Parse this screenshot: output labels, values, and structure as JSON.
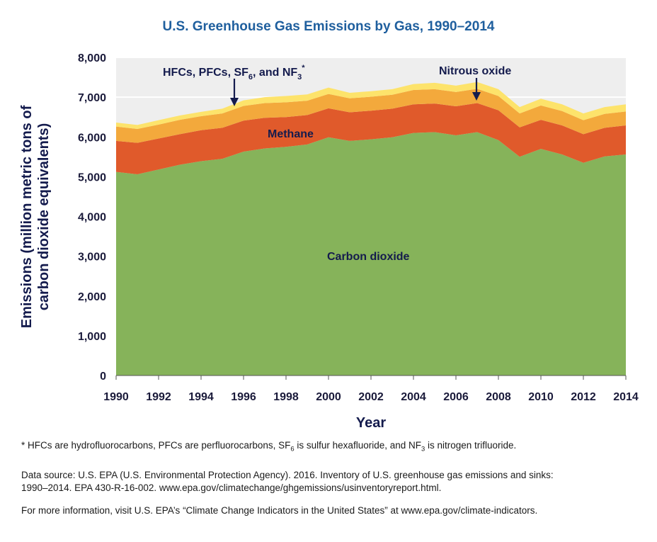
{
  "chart_data": {
    "type": "area",
    "stacked": true,
    "title": "U.S. Greenhouse Gas Emissions by Gas, 1990–2014",
    "xlabel": "Year",
    "ylabel_line1": "Emissions (million metric tons of",
    "ylabel_line2": "carbon dioxide equivalents)",
    "ylim": [
      0,
      8000
    ],
    "xlim": [
      1990,
      2014
    ],
    "x": [
      1990,
      1991,
      1992,
      1993,
      1994,
      1995,
      1996,
      1997,
      1998,
      1999,
      2000,
      2001,
      2002,
      2003,
      2004,
      2005,
      2006,
      2007,
      2008,
      2009,
      2010,
      2011,
      2012,
      2013,
      2014
    ],
    "y_ticks": [
      0,
      1000,
      2000,
      3000,
      4000,
      5000,
      6000,
      7000,
      8000
    ],
    "y_tick_labels": [
      "0",
      "1,000",
      "2,000",
      "3,000",
      "4,000",
      "5,000",
      "6,000",
      "7,000",
      "8,000"
    ],
    "x_ticks": [
      1990,
      1992,
      1994,
      1996,
      1998,
      2000,
      2002,
      2004,
      2006,
      2008,
      2010,
      2012,
      2014
    ],
    "x_tick_labels": [
      "1990",
      "1992",
      "1994",
      "1996",
      "1998",
      "2000",
      "2002",
      "2004",
      "2006",
      "2008",
      "2010",
      "2012",
      "2014"
    ],
    "grid": "horizontal",
    "series": [
      {
        "name": "Carbon dioxide",
        "color": "#86b35a",
        "values": [
          5120,
          5060,
          5180,
          5300,
          5390,
          5450,
          5630,
          5710,
          5750,
          5810,
          5990,
          5900,
          5940,
          5990,
          6100,
          6120,
          6040,
          6120,
          5920,
          5500,
          5700,
          5560,
          5350,
          5510,
          5560
        ]
      },
      {
        "name": "Methane",
        "color": "#e05a2b",
        "values": [
          780,
          790,
          780,
          770,
          780,
          780,
          780,
          770,
          750,
          740,
          730,
          720,
          720,
          720,
          720,
          720,
          730,
          730,
          750,
          740,
          730,
          730,
          720,
          720,
          730
        ]
      },
      {
        "name": "Nitrous oxide",
        "color": "#f3a93c",
        "values": [
          360,
          350,
          350,
          360,
          350,
          360,
          370,
          370,
          370,
          360,
          360,
          350,
          350,
          350,
          360,
          360,
          360,
          360,
          360,
          350,
          360,
          360,
          350,
          350,
          350
        ]
      },
      {
        "name": "HFCs, PFCs, SF6, and NF3",
        "color": "#fde36b",
        "values": [
          100,
          100,
          110,
          110,
          110,
          120,
          140,
          150,
          160,
          160,
          160,
          140,
          140,
          140,
          150,
          160,
          160,
          170,
          170,
          160,
          170,
          170,
          170,
          170,
          180
        ]
      }
    ],
    "annotations": {
      "fgas_text": "HFCs, PFCs, SF",
      "fgas_sub1": "6",
      "fgas_mid": ", and NF",
      "fgas_sub2": "3",
      "fgas_star": "*",
      "nitrous": "Nitrous oxide",
      "methane": "Methane",
      "co2": "Carbon dioxide"
    }
  },
  "notes": {
    "footnote_p1": "* HFCs are hydrofluorocarbons, PFCs are perfluorocarbons, SF",
    "footnote_sub1": "6",
    "footnote_p2": " is sulfur hexafluoride, and NF",
    "footnote_sub2": "3",
    "footnote_p3": " is nitrogen trifluoride.",
    "data_source_line1": "Data source: U.S. EPA (U.S. Environmental Protection Agency). 2016. Inventory of U.S. greenhouse gas emissions and sinks:",
    "data_source_line2": "1990–2014. EPA 430-R-16-002. www.epa.gov/climatechange/ghgemissions/usinventoryreport.html.",
    "more_info": "For more information, visit U.S. EPA’s “Climate Change Indicators in the United States” at www.epa.gov/climate-indicators."
  }
}
